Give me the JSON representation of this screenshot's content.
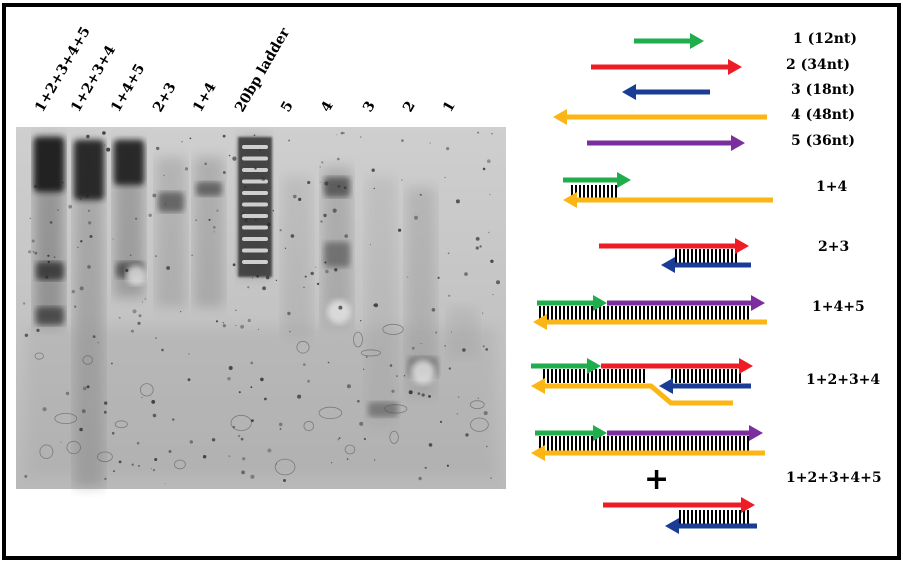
{
  "gel": {
    "lanes": [
      "1+2+3+4+5",
      "1+2+3+4",
      "1+4+5",
      "2+3",
      "1+4",
      "20bp ladder",
      "5",
      "4",
      "3",
      "2",
      "1"
    ]
  },
  "strands": [
    {
      "label": "1 (12nt)",
      "color": "#1fae4b",
      "direction": "right"
    },
    {
      "label": "2 (34nt)",
      "color": "#ee1c24",
      "direction": "right"
    },
    {
      "label": "3 (18nt)",
      "color": "#1a3c95",
      "direction": "left"
    },
    {
      "label": "4 (48nt)",
      "color": "#fbb514",
      "direction": "left"
    },
    {
      "label": "5 (36nt)",
      "color": "#7c2d9e",
      "direction": "right"
    }
  ],
  "complexes": [
    {
      "label": "1+4"
    },
    {
      "label": "2+3"
    },
    {
      "label": "1+4+5"
    },
    {
      "label": "1+2+3+4"
    },
    {
      "label": "1+2+3+4+5"
    }
  ],
  "plus_sign": "+",
  "colors": {
    "green": "#1fae4b",
    "red": "#ee1c24",
    "blue": "#1a3c95",
    "yellow": "#fbb514",
    "purple": "#7c2d9e",
    "gel": "#c9c9c9",
    "frame": "#000000"
  }
}
